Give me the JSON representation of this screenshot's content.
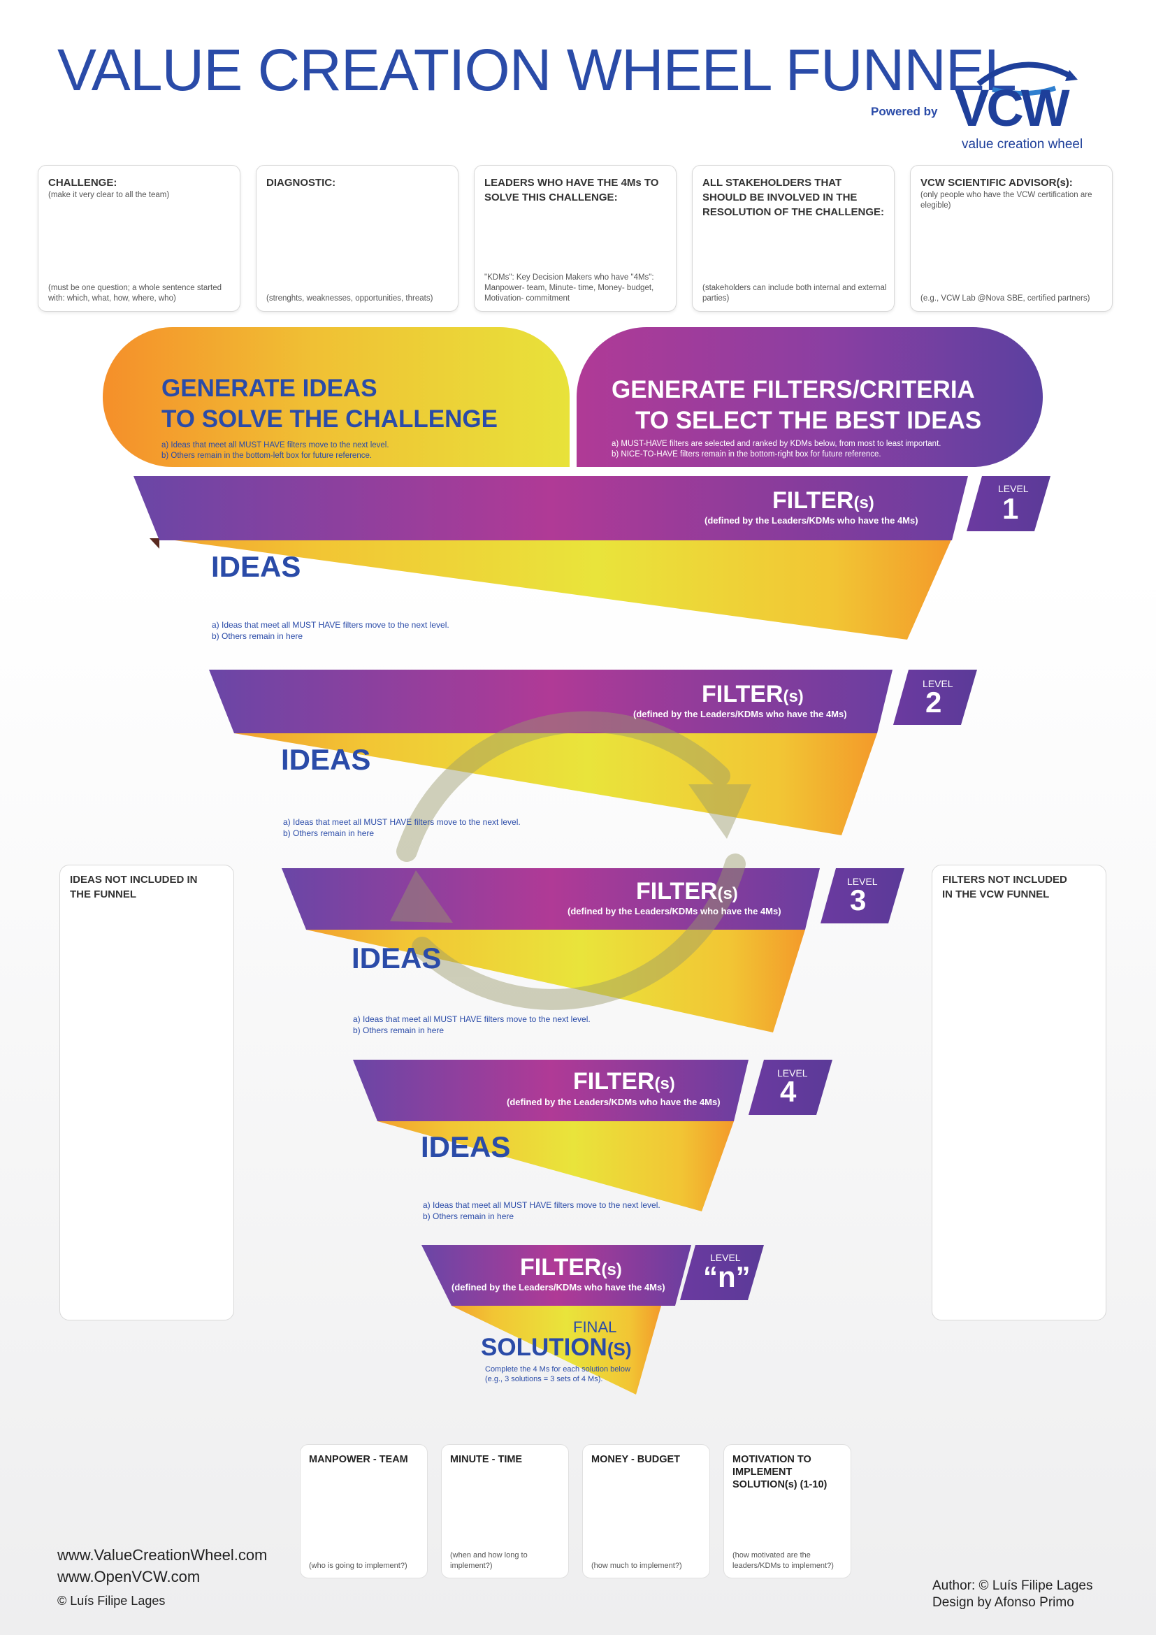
{
  "title": "VALUE CREATION WHEEL FUNNEL",
  "powered_by": "Powered by",
  "logo": {
    "word": "VCW",
    "sub": "value creation wheel"
  },
  "top_boxes": [
    {
      "title": "CHALLENGE:",
      "sub": "(make it very clear to all the team)",
      "foot": "(must be one question; a whole sentence started with: which, what, how, where, who)"
    },
    {
      "title": "DIAGNOSTIC:",
      "sub": "",
      "foot": "(strenghts, weaknesses, opportunities, threats)"
    },
    {
      "title": "LEADERS WHO HAVE THE 4Ms TO SOLVE THIS CHALLENGE:",
      "sub": "",
      "foot": "\"KDMs\": Key Decision Makers who have \"4Ms\": Manpower- team, Minute- time, Money- budget, Motivation- commitment"
    },
    {
      "title": "ALL STAKEHOLDERS THAT SHOULD BE INVOLVED IN THE RESOLUTION OF THE CHALLENGE:",
      "sub": "",
      "foot": "(stakeholders can include both internal and external parties)"
    },
    {
      "title": "VCW SCIENTIFIC ADVISOR(s):",
      "sub": "(only people who have the VCW certification are elegible)",
      "foot": "(e.g., VCW Lab @Nova SBE, certified partners)"
    }
  ],
  "generate_ideas": {
    "line1": "GENERATE IDEAS",
    "line2": "TO SOLVE THE CHALLENGE",
    "note_a": "a) Ideas that meet all MUST HAVE filters move to the next level.",
    "note_b": "b) Others remain in the bottom-left box for future reference."
  },
  "generate_filters": {
    "line1": "GENERATE FILTERS/CRITERIA",
    "line2": "TO SELECT THE BEST IDEAS",
    "note_a": "a) MUST-HAVE filters are selected and ranked by KDMs below, from most to least important.",
    "note_b": "b) NICE-TO-HAVE filters remain in the bottom-right box for future reference."
  },
  "filter": {
    "word": "FILTER",
    "suffix": "(s)",
    "defined": "(defined by the Leaders/KDMs who have the 4Ms)"
  },
  "level_label": "LEVEL",
  "levels": [
    "1",
    "2",
    "3",
    "4",
    "“n”"
  ],
  "ideas": {
    "title": "IDEAS",
    "note_a": "a) Ideas that meet all MUST HAVE filters move to the next level.",
    "note_b": "b) Others remain in here"
  },
  "final": {
    "final_word": "FINAL",
    "solution": "SOLUTION",
    "solution_suffix": "(S)",
    "note_a": "Complete the 4 Ms for each solution below",
    "note_b": "(e.g., 3 solutions = 3 sets of 4 Ms)."
  },
  "side_left": "IDEAS NOT INCLUDED IN THE FUNNEL",
  "side_right": "FILTERS NOT INCLUDED IN THE VCW FUNNEL",
  "bottom_boxes": [
    {
      "title": "MANPOWER - TEAM",
      "foot": "(who is going to implement?)"
    },
    {
      "title": "MINUTE - TIME",
      "foot": "(when and how long to implement?)"
    },
    {
      "title": "MONEY - BUDGET",
      "foot": "(how much to implement?)"
    },
    {
      "title": "MOTIVATION TO IMPLEMENT SOLUTION(s) (1-10)",
      "foot": "(how motivated are the leaders/KDMs to implement?)"
    }
  ],
  "footer": {
    "url1": "www.ValueCreationWheel.com",
    "url2": "www.OpenVCW.com",
    "copyright": "© Luís Filipe Lages",
    "author": "Author: © Luís Filipe Lages",
    "design": "Design by Afonso Primo"
  },
  "colors": {
    "blue": "#2a4ba8",
    "purple": "#7a3fa0",
    "magenta": "#b03a96",
    "orange": "#f39a2a",
    "yellow": "#e8e23a"
  }
}
